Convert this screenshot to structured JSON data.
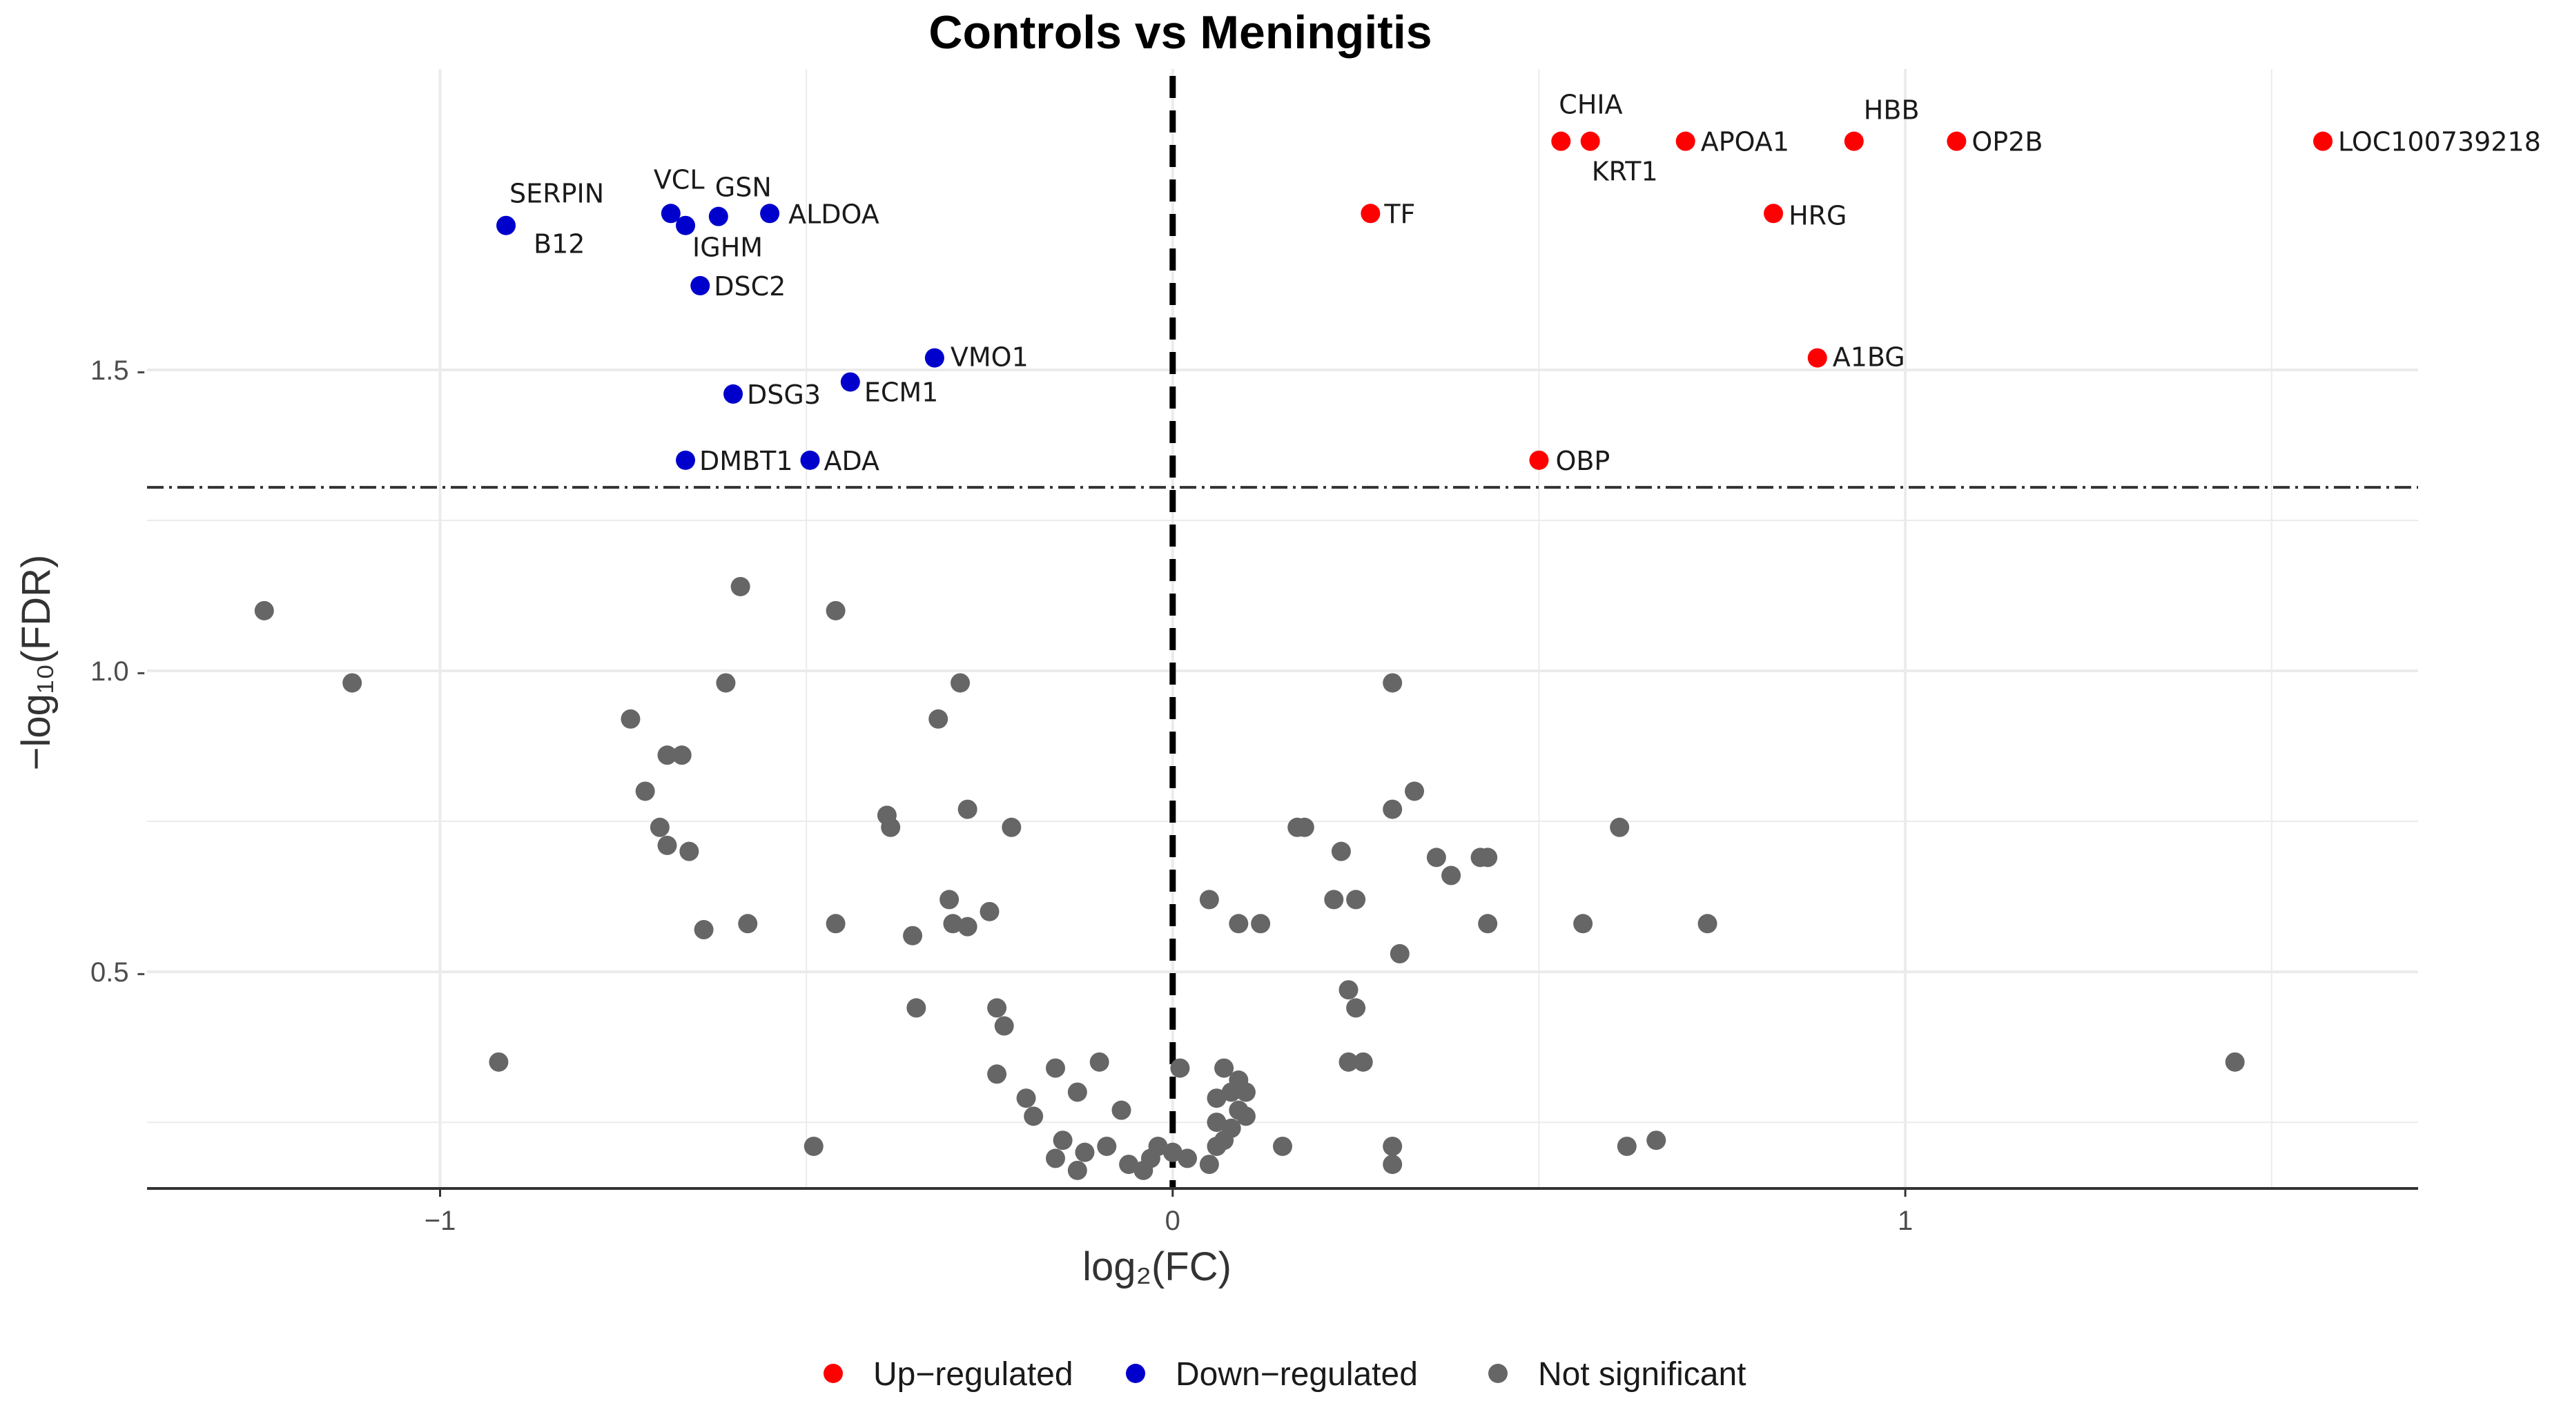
{
  "chart_data": {
    "type": "scatter",
    "title": "Controls vs Meningitis",
    "xlabel": "log₂(FC)",
    "ylabel": "−log₁₀(FDR)",
    "xlim": [
      -1.4,
      1.7
    ],
    "ylim": [
      0.14,
      2.0
    ],
    "x_ticks": [
      -1,
      0,
      1
    ],
    "x_tick_labels": [
      "−1",
      "0",
      "1"
    ],
    "y_ticks": [
      0.5,
      1.0,
      1.5
    ],
    "y_tick_labels": [
      "0.5 -",
      "1.0 -",
      "1.5 -"
    ],
    "grid": true,
    "threshold_y": 1.305,
    "zero_line_x": 0,
    "legend_position": "bottom",
    "colors": {
      "up": "#ff0000",
      "down": "#0000cd",
      "ns": "#666666",
      "grid": "#ebebeb",
      "axis": "#333333"
    },
    "legend": [
      {
        "label": "Up−regulated",
        "key": "up"
      },
      {
        "label": "Down−regulated",
        "key": "down"
      },
      {
        "label": "Not significant",
        "key": "ns"
      }
    ],
    "series": [
      {
        "name": "Up−regulated",
        "key": "up",
        "points": [
          {
            "x": 0.53,
            "y": 1.88,
            "label": "CHIA",
            "ldx": -3,
            "ldy": -40
          },
          {
            "x": 0.57,
            "y": 1.88,
            "label": "KRT1",
            "ldx": 2,
            "ldy": 57
          },
          {
            "x": 0.7,
            "y": 1.88,
            "label": "APOA1",
            "ldx": 22,
            "ldy": 14
          },
          {
            "x": 0.93,
            "y": 1.88,
            "label": "HBB",
            "ldx": 14,
            "ldy": -32
          },
          {
            "x": 1.07,
            "y": 1.88,
            "label": "OP2B",
            "ldx": 22,
            "ldy": 14
          },
          {
            "x": 1.57,
            "y": 1.88,
            "label": "LOC100739218",
            "ldx": 22,
            "ldy": 14
          },
          {
            "x": 0.27,
            "y": 1.76,
            "label": "TF",
            "ldx": 20,
            "ldy": 14
          },
          {
            "x": 0.82,
            "y": 1.76,
            "label": "HRG",
            "ldx": 22,
            "ldy": 16
          },
          {
            "x": 0.88,
            "y": 1.52,
            "label": "A1BG",
            "ldx": 22,
            "ldy": 12
          },
          {
            "x": 0.5,
            "y": 1.35,
            "label": "OBP",
            "ldx": 24,
            "ldy": 14
          }
        ]
      },
      {
        "name": "Down−regulated",
        "key": "down",
        "points": [
          {
            "x": -0.91,
            "y": 1.74,
            "label": "SERPIN",
            "ldx": 5,
            "ldy": -33
          },
          {
            "x": -0.91,
            "y": 1.74,
            "label": "B12",
            "ldx": 40,
            "ldy": 40
          },
          {
            "x": -0.685,
            "y": 1.76,
            "label": "VCL",
            "ldx": -25,
            "ldy": -36
          },
          {
            "x": -0.62,
            "y": 1.755,
            "label": "GSN",
            "ldx": -5,
            "ldy": -29
          },
          {
            "x": -0.665,
            "y": 1.74,
            "label": "IGHM",
            "ldx": 10,
            "ldy": 45
          },
          {
            "x": -0.55,
            "y": 1.76,
            "label": "ALDOA",
            "ldx": 27,
            "ldy": 14
          },
          {
            "x": -0.645,
            "y": 1.64,
            "label": "DSC2",
            "ldx": 20,
            "ldy": 14
          },
          {
            "x": -0.325,
            "y": 1.52,
            "label": "VMO1",
            "ldx": 23,
            "ldy": 12
          },
          {
            "x": -0.44,
            "y": 1.48,
            "label": "ECM1",
            "ldx": 20,
            "ldy": 28
          },
          {
            "x": -0.6,
            "y": 1.46,
            "label": "DSG3",
            "ldx": 20,
            "ldy": 14
          },
          {
            "x": -0.665,
            "y": 1.35,
            "label": "DMBT1",
            "ldx": 20,
            "ldy": 14
          },
          {
            "x": -0.495,
            "y": 1.35,
            "label": "ADA",
            "ldx": 20,
            "ldy": 14
          }
        ]
      },
      {
        "name": "Not significant",
        "key": "ns",
        "points": [
          {
            "x": -1.24,
            "y": 1.1
          },
          {
            "x": -1.12,
            "y": 0.98
          },
          {
            "x": -0.92,
            "y": 0.35
          },
          {
            "x": -0.59,
            "y": 1.14
          },
          {
            "x": -0.46,
            "y": 1.1
          },
          {
            "x": -0.74,
            "y": 0.92
          },
          {
            "x": -0.61,
            "y": 0.98
          },
          {
            "x": -0.29,
            "y": 0.98
          },
          {
            "x": -0.69,
            "y": 0.86
          },
          {
            "x": -0.67,
            "y": 0.86
          },
          {
            "x": -0.32,
            "y": 0.92
          },
          {
            "x": -0.72,
            "y": 0.8
          },
          {
            "x": -0.7,
            "y": 0.74
          },
          {
            "x": -0.69,
            "y": 0.71
          },
          {
            "x": -0.66,
            "y": 0.7
          },
          {
            "x": -0.39,
            "y": 0.76
          },
          {
            "x": -0.385,
            "y": 0.74
          },
          {
            "x": -0.28,
            "y": 0.77
          },
          {
            "x": -0.22,
            "y": 0.74
          },
          {
            "x": -0.64,
            "y": 0.57
          },
          {
            "x": -0.58,
            "y": 0.58
          },
          {
            "x": -0.46,
            "y": 0.58
          },
          {
            "x": -0.355,
            "y": 0.56
          },
          {
            "x": -0.305,
            "y": 0.62
          },
          {
            "x": -0.3,
            "y": 0.58
          },
          {
            "x": -0.28,
            "y": 0.575
          },
          {
            "x": -0.25,
            "y": 0.6
          },
          {
            "x": -0.35,
            "y": 0.44
          },
          {
            "x": -0.24,
            "y": 0.44
          },
          {
            "x": -0.23,
            "y": 0.41
          },
          {
            "x": -0.49,
            "y": 0.21
          },
          {
            "x": -0.24,
            "y": 0.33
          },
          {
            "x": -0.2,
            "y": 0.29
          },
          {
            "x": -0.19,
            "y": 0.26
          },
          {
            "x": -0.16,
            "y": 0.34
          },
          {
            "x": -0.13,
            "y": 0.3
          },
          {
            "x": -0.1,
            "y": 0.35
          },
          {
            "x": -0.07,
            "y": 0.27
          },
          {
            "x": -0.15,
            "y": 0.22
          },
          {
            "x": -0.12,
            "y": 0.2
          },
          {
            "x": -0.09,
            "y": 0.21
          },
          {
            "x": -0.16,
            "y": 0.19
          },
          {
            "x": -0.13,
            "y": 0.17
          },
          {
            "x": -0.06,
            "y": 0.18
          },
          {
            "x": -0.04,
            "y": 0.17
          },
          {
            "x": -0.03,
            "y": 0.19
          },
          {
            "x": -0.02,
            "y": 0.21
          },
          {
            "x": 0.0,
            "y": 0.2
          },
          {
            "x": 0.01,
            "y": 0.34
          },
          {
            "x": 0.02,
            "y": 0.19
          },
          {
            "x": 0.05,
            "y": 0.18
          },
          {
            "x": 0.06,
            "y": 0.21
          },
          {
            "x": 0.07,
            "y": 0.22
          },
          {
            "x": 0.06,
            "y": 0.25
          },
          {
            "x": 0.08,
            "y": 0.24
          },
          {
            "x": 0.09,
            "y": 0.27
          },
          {
            "x": 0.08,
            "y": 0.3
          },
          {
            "x": 0.1,
            "y": 0.26
          },
          {
            "x": 0.09,
            "y": 0.32
          },
          {
            "x": 0.07,
            "y": 0.34
          },
          {
            "x": 0.1,
            "y": 0.3
          },
          {
            "x": 0.06,
            "y": 0.29
          },
          {
            "x": 0.05,
            "y": 0.62
          },
          {
            "x": 0.09,
            "y": 0.58
          },
          {
            "x": 0.12,
            "y": 0.58
          },
          {
            "x": 0.15,
            "y": 0.21
          },
          {
            "x": 0.17,
            "y": 0.74
          },
          {
            "x": 0.18,
            "y": 0.74
          },
          {
            "x": 0.23,
            "y": 0.7
          },
          {
            "x": 0.22,
            "y": 0.62
          },
          {
            "x": 0.25,
            "y": 0.62
          },
          {
            "x": 0.24,
            "y": 0.47
          },
          {
            "x": 0.25,
            "y": 0.44
          },
          {
            "x": 0.24,
            "y": 0.35
          },
          {
            "x": 0.26,
            "y": 0.35
          },
          {
            "x": 0.3,
            "y": 0.98
          },
          {
            "x": 0.3,
            "y": 0.77
          },
          {
            "x": 0.33,
            "y": 0.8
          },
          {
            "x": 0.31,
            "y": 0.53
          },
          {
            "x": 0.36,
            "y": 0.69
          },
          {
            "x": 0.38,
            "y": 0.66
          },
          {
            "x": 0.42,
            "y": 0.69
          },
          {
            "x": 0.43,
            "y": 0.69
          },
          {
            "x": 0.43,
            "y": 0.58
          },
          {
            "x": 0.3,
            "y": 0.21
          },
          {
            "x": 0.3,
            "y": 0.18
          },
          {
            "x": 0.56,
            "y": 0.58
          },
          {
            "x": 0.61,
            "y": 0.74
          },
          {
            "x": 0.62,
            "y": 0.21
          },
          {
            "x": 0.66,
            "y": 0.22
          },
          {
            "x": 0.73,
            "y": 0.58
          },
          {
            "x": 1.45,
            "y": 0.35
          }
        ]
      }
    ]
  }
}
